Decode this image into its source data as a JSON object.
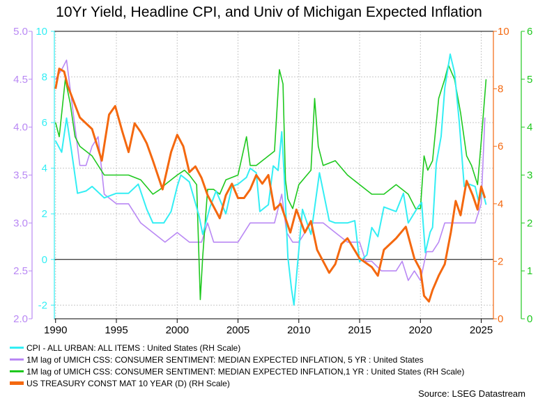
{
  "title": "10Yr Yield, Headline CPI, and Univ of Michigan Expected Inflation",
  "source": "Source: LSEG Datastream",
  "colors": {
    "cpi": "#33eef4",
    "umich5": "#b988f4",
    "umich1": "#1ec81e",
    "treasury": "#f4680f",
    "axis_left_umich": "#b988f4",
    "axis_left_cpi": "#33eef4",
    "axis_right_treasury": "#f4680f",
    "axis_right_umich1": "#1ec81e",
    "zero_line": "#000000",
    "grid": "#c8c8c8"
  },
  "chart_data": {
    "type": "line",
    "title": "10Yr Yield, Headline CPI, and Univ of Michigan Expected Inflation",
    "xlim": [
      1989.9,
      2026.0
    ],
    "x_ticks": [
      1990,
      1995,
      2000,
      2005,
      2010,
      2015,
      2020,
      2025
    ],
    "grid": true,
    "legend_placement": "bottom",
    "axes": {
      "left_outer": {
        "range": [
          2.0,
          5.0
        ],
        "ticks": [
          "2.0",
          "2.5",
          "3.0",
          "3.5",
          "4.0",
          "4.5",
          "5.0"
        ],
        "series": "umich5"
      },
      "left_inner": {
        "range": [
          -2.6,
          10
        ],
        "ticks": [
          "-2",
          "0",
          "2",
          "4",
          "6",
          "8",
          "10"
        ],
        "series": "cpi"
      },
      "right_inner": {
        "range": [
          0,
          10
        ],
        "ticks": [
          "0",
          "2",
          "4",
          "6",
          "8",
          "10"
        ],
        "series": "treasury"
      },
      "right_outer": {
        "range": [
          0,
          6
        ],
        "ticks": [
          "0",
          "1",
          "2",
          "3",
          "4",
          "5",
          "6"
        ],
        "series": "umich1"
      }
    },
    "zero_line_value": 0,
    "series": [
      {
        "key": "cpi",
        "name": "CPI - ALL URBAN: ALL ITEMS : United States (RH Scale)",
        "axis": "left_inner",
        "x": [
          1990.0,
          1990.5,
          1990.9,
          1991.3,
          1991.8,
          1992.5,
          1993.0,
          1994.0,
          1995.0,
          1996.0,
          1996.8,
          1997.5,
          1998.0,
          1998.9,
          1999.5,
          2000.0,
          2000.3,
          2001.0,
          2001.8,
          2002.1,
          2002.7,
          2003.2,
          2004.0,
          2004.5,
          2005.0,
          2005.7,
          2006.0,
          2006.5,
          2006.8,
          2007.5,
          2007.9,
          2008.3,
          2008.6,
          2008.8,
          2009.1,
          2009.4,
          2009.6,
          2009.9,
          2010.3,
          2011.0,
          2011.7,
          2012.5,
          2013.0,
          2014.0,
          2014.6,
          2015.0,
          2015.6,
          2016.0,
          2016.5,
          2017.0,
          2018.0,
          2018.6,
          2019.0,
          2019.8,
          2020.1,
          2020.4,
          2020.8,
          2021.0,
          2021.3,
          2021.7,
          2022.0,
          2022.45,
          2022.8,
          2023.2,
          2023.6,
          2024.0,
          2024.5,
          2024.8,
          2025.1,
          2025.4
        ],
        "values": [
          5.2,
          4.7,
          6.2,
          4.8,
          2.9,
          3.0,
          3.2,
          2.7,
          2.9,
          2.9,
          3.3,
          2.2,
          1.6,
          1.6,
          2.1,
          3.2,
          3.7,
          3.4,
          1.9,
          1.1,
          2.3,
          3.0,
          2.0,
          3.2,
          3.3,
          3.6,
          4.0,
          3.8,
          2.1,
          2.4,
          4.1,
          3.9,
          5.6,
          3.7,
          0.1,
          -1.3,
          -2.0,
          -0.2,
          2.2,
          1.1,
          3.8,
          1.7,
          1.6,
          1.6,
          1.7,
          -0.1,
          0.2,
          1.4,
          1.0,
          2.3,
          2.1,
          2.9,
          1.6,
          2.3,
          2.5,
          0.3,
          1.2,
          1.4,
          4.2,
          5.4,
          7.5,
          9.0,
          8.2,
          6.0,
          3.2,
          3.3,
          3.2,
          2.5,
          3.0,
          2.4
        ]
      },
      {
        "key": "umich5",
        "name": "1M lag of UMICH CSS: CONSUMER SENTIMENT: MEDIAN EXPECTED INFLATION, 5 YR : United States",
        "axis": "left_outer",
        "x": [
          1990.0,
          1990.5,
          1990.9,
          1991.5,
          1992.0,
          1992.5,
          1993.0,
          1993.5,
          1994.0,
          1995.0,
          1996.0,
          1997.0,
          1998.0,
          1999.0,
          2000.0,
          2001.0,
          2002.0,
          2002.5,
          2003.0,
          2004.0,
          2005.0,
          2006.0,
          2007.0,
          2008.0,
          2008.6,
          2009.0,
          2009.5,
          2010.0,
          2011.0,
          2012.0,
          2013.0,
          2014.0,
          2015.0,
          2015.5,
          2016.0,
          2016.8,
          2017.5,
          2018.0,
          2018.5,
          2019.0,
          2019.5,
          2020.0,
          2020.5,
          2021.0,
          2021.5,
          2022.0,
          2022.5,
          2023.0,
          2023.5,
          2024.0,
          2024.5,
          2025.0,
          2025.3
        ],
        "values": [
          4.5,
          4.6,
          4.7,
          4.1,
          3.6,
          3.6,
          3.8,
          3.9,
          3.3,
          3.2,
          3.2,
          3.0,
          2.9,
          2.8,
          2.9,
          2.8,
          2.8,
          3.0,
          2.8,
          2.8,
          2.8,
          3.0,
          3.0,
          3.0,
          3.3,
          2.9,
          2.8,
          2.8,
          3.0,
          3.0,
          2.9,
          2.8,
          2.8,
          2.6,
          2.6,
          2.5,
          2.5,
          2.5,
          2.6,
          2.4,
          2.5,
          2.4,
          2.7,
          2.7,
          2.8,
          3.0,
          3.0,
          3.0,
          3.0,
          3.0,
          3.0,
          3.2,
          4.1
        ]
      },
      {
        "key": "umich1",
        "name": "1M lag of UMICH CSS: CONSUMER SENTIMENT: MEDIAN EXPECTED INFLATION,1 YR : United States (RH Scale)",
        "axis": "right_outer",
        "x": [
          1990.0,
          1990.3,
          1990.8,
          1991.2,
          1991.6,
          1992.0,
          1993.0,
          1994.0,
          1995.0,
          1996.0,
          1997.0,
          1998.0,
          1998.6,
          1999.0,
          2000.0,
          2000.6,
          2001.0,
          2001.6,
          2001.9,
          2002.1,
          2002.5,
          2003.0,
          2003.5,
          2004.0,
          2005.0,
          2005.7,
          2006.0,
          2006.5,
          2007.0,
          2008.0,
          2008.4,
          2008.7,
          2008.9,
          2009.1,
          2009.5,
          2010.0,
          2011.0,
          2011.3,
          2011.6,
          2012.0,
          2013.0,
          2014.0,
          2015.0,
          2016.0,
          2017.0,
          2018.0,
          2019.0,
          2019.6,
          2020.0,
          2020.3,
          2020.6,
          2021.0,
          2021.5,
          2022.0,
          2022.3,
          2022.8,
          2023.3,
          2023.8,
          2024.2,
          2024.7,
          2025.0,
          2025.4
        ],
        "values": [
          4.1,
          3.8,
          5.0,
          4.5,
          3.8,
          3.6,
          3.4,
          3.0,
          3.0,
          3.0,
          2.9,
          2.6,
          2.7,
          2.8,
          3.0,
          3.1,
          3.0,
          2.8,
          0.4,
          1.3,
          2.7,
          2.7,
          2.6,
          2.9,
          3.0,
          3.8,
          3.2,
          3.2,
          3.3,
          3.5,
          5.2,
          4.9,
          2.9,
          2.5,
          2.3,
          2.8,
          3.1,
          4.6,
          3.6,
          3.2,
          3.3,
          3.0,
          2.8,
          2.6,
          2.6,
          2.8,
          2.6,
          2.3,
          2.3,
          3.4,
          3.1,
          3.3,
          4.6,
          5.0,
          5.3,
          5.0,
          4.3,
          3.4,
          3.2,
          2.8,
          3.7,
          5.0
        ]
      },
      {
        "key": "treasury",
        "name": "US TREASURY CONST MAT 10 YEAR (D) (RH Scale)",
        "axis": "right_inner",
        "x": [
          1990.0,
          1990.3,
          1990.7,
          1991.0,
          1992.0,
          1993.0,
          1993.8,
          1994.4,
          1994.9,
          1995.5,
          1996.0,
          1996.5,
          1997.0,
          1997.5,
          1998.0,
          1998.8,
          1999.5,
          2000.0,
          2000.5,
          2001.0,
          2001.5,
          2002.0,
          2002.5,
          2003.0,
          2003.5,
          2004.0,
          2004.5,
          2005.0,
          2005.5,
          2006.0,
          2006.5,
          2007.0,
          2007.5,
          2008.0,
          2008.5,
          2008.9,
          2009.3,
          2009.8,
          2010.5,
          2011.0,
          2011.5,
          2012.0,
          2012.5,
          2013.0,
          2013.5,
          2014.0,
          2015.0,
          2016.0,
          2016.5,
          2017.0,
          2018.0,
          2018.8,
          2019.5,
          2020.0,
          2020.3,
          2020.7,
          2021.0,
          2021.5,
          2022.0,
          2022.5,
          2022.9,
          2023.3,
          2023.8,
          2024.3,
          2024.7,
          2025.0,
          2025.3
        ],
        "values": [
          8.0,
          8.7,
          8.6,
          8.1,
          7.0,
          6.6,
          5.5,
          7.1,
          7.4,
          6.5,
          5.8,
          6.8,
          6.5,
          6.1,
          5.5,
          4.5,
          5.8,
          6.4,
          6.0,
          5.1,
          5.3,
          4.9,
          4.3,
          3.9,
          3.5,
          4.3,
          4.7,
          4.2,
          4.2,
          4.5,
          5.0,
          4.7,
          5.0,
          3.8,
          4.0,
          3.5,
          3.0,
          3.8,
          3.0,
          3.4,
          2.4,
          2.0,
          1.6,
          1.9,
          2.6,
          2.8,
          2.1,
          1.8,
          1.5,
          2.4,
          2.8,
          3.2,
          2.1,
          1.7,
          0.8,
          0.6,
          1.0,
          1.5,
          1.9,
          3.0,
          4.1,
          3.6,
          4.8,
          4.3,
          3.8,
          4.6,
          4.2
        ]
      }
    ]
  },
  "legend": [
    {
      "key": "cpi",
      "label": "CPI - ALL URBAN: ALL ITEMS : United States (RH Scale)"
    },
    {
      "key": "umich5",
      "label": "1M lag of UMICH CSS: CONSUMER SENTIMENT: MEDIAN EXPECTED INFLATION, 5 YR : United States"
    },
    {
      "key": "umich1",
      "label": "1M lag of UMICH CSS: CONSUMER SENTIMENT: MEDIAN EXPECTED INFLATION,1 YR : United States (RH Scale)"
    },
    {
      "key": "treasury",
      "label": "US TREASURY CONST MAT 10 YEAR (D) (RH Scale)"
    }
  ]
}
